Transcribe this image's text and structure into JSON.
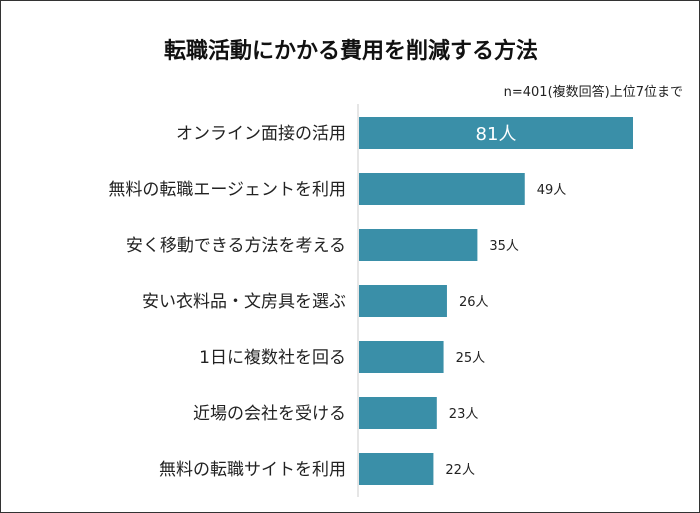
{
  "chart_data": {
    "type": "bar",
    "orientation": "horizontal",
    "title": "転職活動にかかる費用を削減する方法",
    "subtitle": "n=401(複数回答)上位7位まで",
    "categories": [
      "オンライン面接の活用",
      "無料の転職エージェントを利用",
      "安く移動できる方法を考える",
      "安い衣料品・文房具を選ぶ",
      "1日に複数社を回る",
      "近場の会社を受ける",
      "無料の転職サイトを利用"
    ],
    "values": [
      81,
      49,
      35,
      26,
      25,
      23,
      22
    ],
    "value_labels": [
      "81人",
      "49人",
      "35人",
      "26人",
      "25人",
      "23人",
      "22人"
    ],
    "xlim": [
      0,
      90
    ],
    "grid": false,
    "bar_color": "#3a8fa8"
  }
}
